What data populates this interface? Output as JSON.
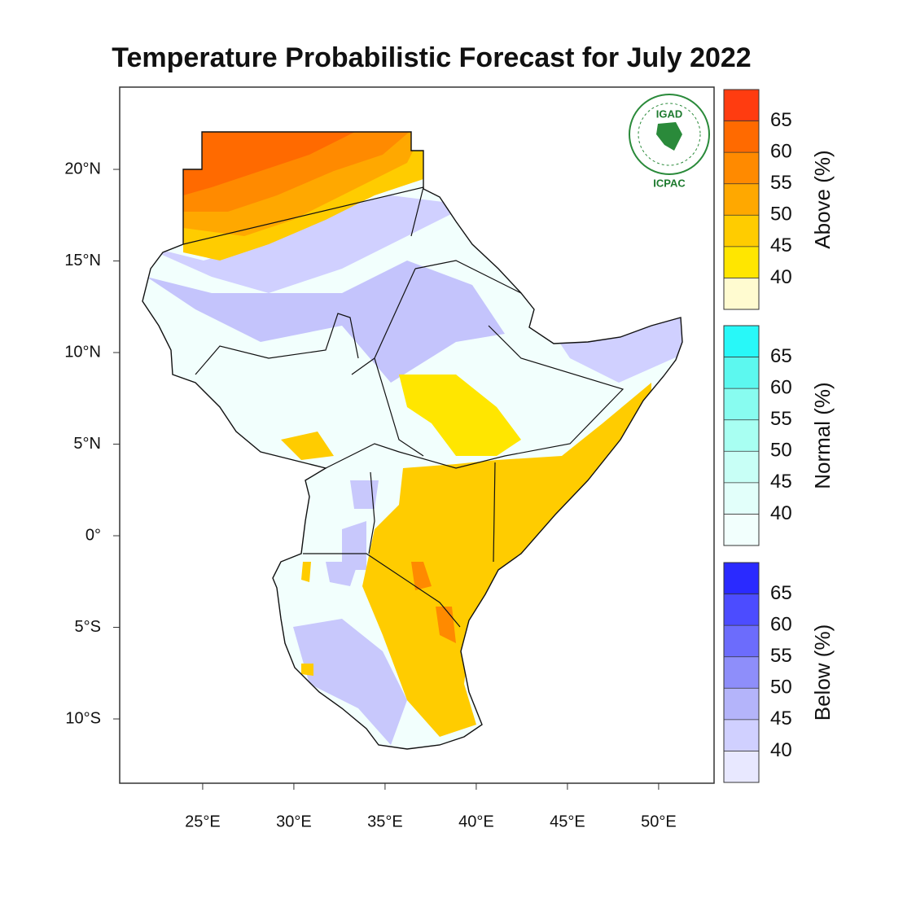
{
  "title": "Temperature Probabilistic Forecast for July 2022",
  "map": {
    "lon_range": [
      20.45,
      53.04
    ],
    "lat_range": [
      -13.51,
      24.49
    ],
    "xticks": [
      {
        "value": 25,
        "label": "25°E"
      },
      {
        "value": 30,
        "label": "30°E"
      },
      {
        "value": 35,
        "label": "35°E"
      },
      {
        "value": 40,
        "label": "40°E"
      },
      {
        "value": 45,
        "label": "45°E"
      },
      {
        "value": 50,
        "label": "50°E"
      }
    ],
    "yticks": [
      {
        "value": 20,
        "label": "20°N"
      },
      {
        "value": 15,
        "label": "15°N"
      },
      {
        "value": 10,
        "label": "10°N"
      },
      {
        "value": 5,
        "label": "5°N"
      },
      {
        "value": 0,
        "label": "0°"
      },
      {
        "value": -5,
        "label": "5°S"
      },
      {
        "value": -10,
        "label": "10°S"
      }
    ]
  },
  "logo": {
    "name": "IGAD",
    "org": "ICPAC"
  },
  "legends": [
    {
      "label": "Above (%)",
      "ticks": [
        40,
        45,
        50,
        55,
        60,
        65
      ],
      "colors": [
        "#fffbd0",
        "#ffe600",
        "#ffcc00",
        "#ffa800",
        "#ff8a00",
        "#ff6a00",
        "#ff3c10"
      ]
    },
    {
      "label": "Normal (%)",
      "ticks": [
        40,
        45,
        50,
        55,
        60,
        65
      ],
      "colors": [
        "#f2fffd",
        "#e2fffa",
        "#c8fff6",
        "#a8fff2",
        "#88fcf0",
        "#5cf8ef",
        "#28f8f8"
      ]
    },
    {
      "label": "Below (%)",
      "ticks": [
        40,
        45,
        50,
        55,
        60,
        65
      ],
      "colors": [
        "#e8e8ff",
        "#d0d0ff",
        "#b4b4fa",
        "#8e8efa",
        "#6c6cfc",
        "#4c4cff",
        "#2a2aff"
      ]
    }
  ]
}
